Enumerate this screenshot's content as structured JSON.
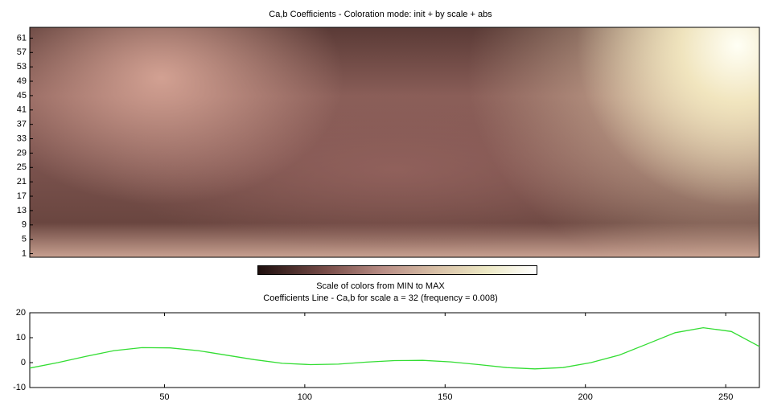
{
  "chart_data": [
    {
      "type": "heatmap",
      "title": "Ca,b Coefficients - Coloration mode: init + by scale + abs",
      "ylim": [
        0,
        64
      ],
      "yticks": [
        1,
        5,
        9,
        13,
        17,
        21,
        25,
        29,
        33,
        37,
        41,
        45,
        49,
        53,
        57,
        61
      ],
      "colorbar_label": "Scale of colors from MIN to MAX"
    },
    {
      "type": "line",
      "title": "Coefficients Line - Ca,b for scale a = 32  (frequency =  0.008)",
      "x": [
        2,
        12,
        22,
        32,
        42,
        52,
        62,
        72,
        82,
        92,
        102,
        112,
        122,
        132,
        142,
        152,
        162,
        172,
        182,
        192,
        202,
        212,
        222,
        232,
        242,
        252,
        262
      ],
      "values": [
        -2.2,
        0,
        2.5,
        4.8,
        6,
        5.9,
        4.8,
        3,
        1.2,
        -0.3,
        -0.8,
        -0.6,
        0.2,
        0.8,
        0.9,
        0.3,
        -0.8,
        -2,
        -2.5,
        -2,
        0,
        3,
        7.5,
        12,
        14,
        12.5,
        6.5
      ],
      "color": "#33dd33",
      "xlim": [
        2,
        262
      ],
      "ylim": [
        -10,
        20
      ],
      "xticks": [
        50,
        100,
        150,
        200,
        250
      ],
      "yticks": [
        -10,
        0,
        10,
        20
      ]
    }
  ]
}
